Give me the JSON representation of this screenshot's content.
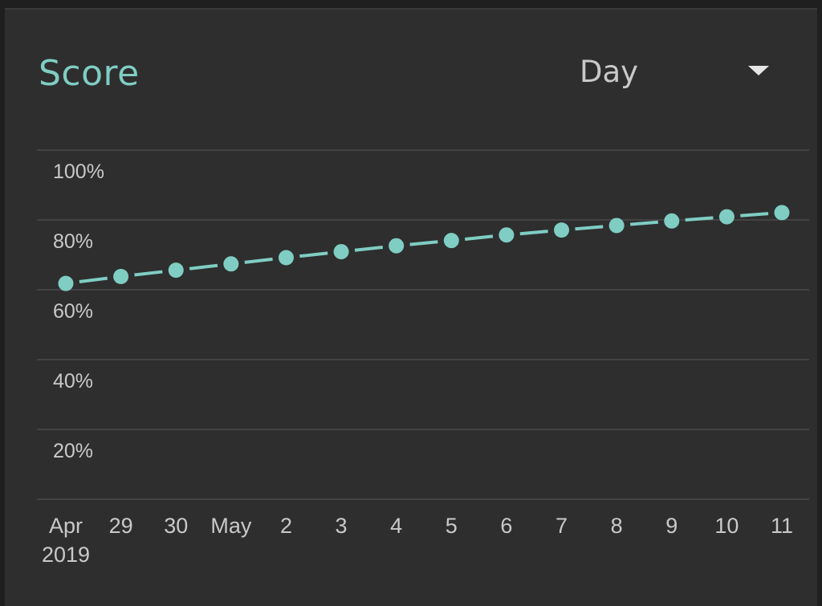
{
  "card": {
    "title": "Score",
    "period_selector": {
      "selected": "Day",
      "icon": "dropdown-arrow-icon"
    }
  },
  "colors": {
    "accent": "#7fcdc3",
    "background": "#2e2e2e",
    "gridline": "#4a4a4a",
    "label": "#c9c9c9"
  },
  "chart_data": {
    "type": "line",
    "title": "",
    "xlabel": "",
    "ylabel": "",
    "ylim": [
      0,
      100
    ],
    "y_ticks": [
      "20%",
      "40%",
      "60%",
      "80%",
      "100%"
    ],
    "y_tick_values": [
      20,
      40,
      60,
      80,
      100
    ],
    "grid": true,
    "x_tick_labels": [
      [
        "Apr",
        "2019"
      ],
      [
        "29"
      ],
      [
        "30"
      ],
      [
        "May"
      ],
      [
        "2"
      ],
      [
        "3"
      ],
      [
        "4"
      ],
      [
        "5"
      ],
      [
        "6"
      ],
      [
        "7"
      ],
      [
        "8"
      ],
      [
        "9"
      ],
      [
        "10"
      ],
      [
        "11"
      ]
    ],
    "series": [
      {
        "values": [
          61.8,
          63.8,
          65.6,
          67.4,
          69.2,
          70.9,
          72.6,
          74.1,
          75.7,
          77.1,
          78.4,
          79.7,
          80.9,
          82.1
        ]
      }
    ]
  }
}
